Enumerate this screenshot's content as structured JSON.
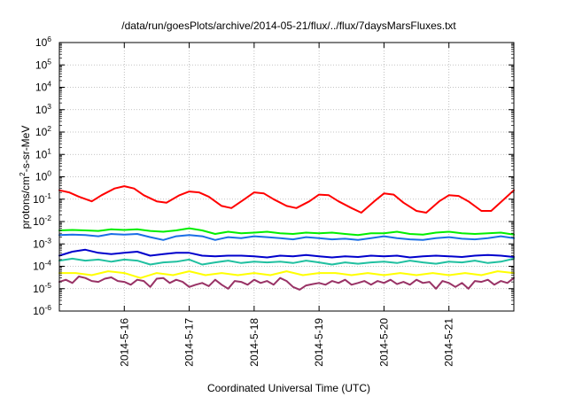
{
  "chart_data": {
    "type": "line",
    "title": "/data/run/goesPlots/archive/2014-05-21/flux/../flux/7daysMarsFluxes.txt",
    "xlabel": "Coordinated Universal Time (UTC)",
    "ylabel": {
      "pre": "protons/cm",
      "sup": "2",
      "post": "-s-sr-MeV"
    },
    "yscale": "log",
    "ylim": [
      1e-06,
      1000000.0
    ],
    "xlim": [
      0,
      7
    ],
    "grid": true,
    "y_ticks": [
      {
        "base": "10",
        "exp": "-6"
      },
      {
        "base": "10",
        "exp": "-5"
      },
      {
        "base": "10",
        "exp": "-4"
      },
      {
        "base": "10",
        "exp": "-3"
      },
      {
        "base": "10",
        "exp": "-2"
      },
      {
        "base": "10",
        "exp": "-1"
      },
      {
        "base": "10",
        "exp": "0"
      },
      {
        "base": "10",
        "exp": "1"
      },
      {
        "base": "10",
        "exp": "2"
      },
      {
        "base": "10",
        "exp": "3"
      },
      {
        "base": "10",
        "exp": "4"
      },
      {
        "base": "10",
        "exp": "5"
      },
      {
        "base": "10",
        "exp": "6"
      }
    ],
    "x_ticks": [
      {
        "x": 1,
        "label": "2014-5-16"
      },
      {
        "x": 2,
        "label": "2014-5-17"
      },
      {
        "x": 3,
        "label": "2014-5-18"
      },
      {
        "x": 4,
        "label": "2014-5-19"
      },
      {
        "x": 5,
        "label": "2014-5-20"
      },
      {
        "x": 6,
        "label": "2014-5-21"
      }
    ],
    "series": [
      {
        "color": "#ff0000",
        "x": [
          0,
          0.15,
          0.3,
          0.5,
          0.65,
          0.85,
          1.0,
          1.15,
          1.3,
          1.5,
          1.65,
          1.85,
          2.0,
          2.15,
          2.3,
          2.5,
          2.65,
          2.85,
          3.0,
          3.15,
          3.3,
          3.5,
          3.65,
          3.85,
          4.0,
          4.15,
          4.3,
          4.5,
          4.65,
          4.85,
          5.0,
          5.15,
          5.3,
          5.5,
          5.65,
          5.85,
          6.0,
          6.15,
          6.3,
          6.5,
          6.65,
          6.85,
          7.0
        ],
        "y": [
          0.25,
          0.2,
          0.13,
          0.08,
          0.15,
          0.3,
          0.38,
          0.3,
          0.15,
          0.08,
          0.07,
          0.15,
          0.22,
          0.2,
          0.13,
          0.05,
          0.04,
          0.1,
          0.2,
          0.18,
          0.1,
          0.05,
          0.04,
          0.08,
          0.16,
          0.15,
          0.08,
          0.04,
          0.025,
          0.08,
          0.18,
          0.16,
          0.07,
          0.03,
          0.025,
          0.08,
          0.15,
          0.14,
          0.08,
          0.03,
          0.03,
          0.1,
          0.25
        ]
      },
      {
        "color": "#00ee00",
        "x": [
          0,
          0.2,
          0.4,
          0.6,
          0.8,
          1.0,
          1.2,
          1.4,
          1.6,
          1.8,
          2.0,
          2.2,
          2.4,
          2.6,
          2.8,
          3.0,
          3.2,
          3.4,
          3.6,
          3.8,
          4.0,
          4.2,
          4.4,
          4.6,
          4.8,
          5.0,
          5.2,
          5.4,
          5.6,
          5.8,
          6.0,
          6.2,
          6.4,
          6.6,
          6.8,
          7.0
        ],
        "y": [
          0.004,
          0.0042,
          0.004,
          0.0038,
          0.0045,
          0.0042,
          0.0045,
          0.0038,
          0.0035,
          0.004,
          0.005,
          0.004,
          0.0028,
          0.0035,
          0.003,
          0.0032,
          0.0035,
          0.003,
          0.0028,
          0.0032,
          0.003,
          0.0032,
          0.0028,
          0.0025,
          0.003,
          0.003,
          0.0035,
          0.0028,
          0.0026,
          0.0032,
          0.0035,
          0.003,
          0.0028,
          0.003,
          0.0032,
          0.0026
        ]
      },
      {
        "color": "#1a6ee6",
        "x": [
          0,
          0.2,
          0.4,
          0.6,
          0.8,
          1.0,
          1.2,
          1.4,
          1.6,
          1.8,
          2.0,
          2.2,
          2.4,
          2.6,
          2.8,
          3.0,
          3.2,
          3.4,
          3.6,
          3.8,
          4.0,
          4.2,
          4.4,
          4.6,
          4.8,
          5.0,
          5.2,
          5.4,
          5.6,
          5.8,
          6.0,
          6.2,
          6.4,
          6.6,
          6.8,
          7.0
        ],
        "y": [
          0.0025,
          0.0026,
          0.0025,
          0.0022,
          0.0028,
          0.0026,
          0.0028,
          0.002,
          0.0015,
          0.0022,
          0.0025,
          0.0022,
          0.0015,
          0.002,
          0.0018,
          0.0022,
          0.002,
          0.0018,
          0.0016,
          0.002,
          0.0018,
          0.0016,
          0.0017,
          0.0015,
          0.0018,
          0.0022,
          0.0018,
          0.0016,
          0.0015,
          0.0018,
          0.002,
          0.0017,
          0.0016,
          0.0018,
          0.0022,
          0.0018
        ]
      },
      {
        "color": "#0000cc",
        "x": [
          0,
          0.2,
          0.4,
          0.6,
          0.8,
          1.0,
          1.2,
          1.4,
          1.6,
          1.8,
          2.0,
          2.2,
          2.4,
          2.6,
          2.8,
          3.0,
          3.2,
          3.4,
          3.6,
          3.8,
          4.0,
          4.2,
          4.4,
          4.6,
          4.8,
          5.0,
          5.2,
          5.4,
          5.6,
          5.8,
          6.0,
          6.2,
          6.4,
          6.6,
          6.8,
          7.0
        ],
        "y": [
          0.0003,
          0.00045,
          0.00055,
          0.0004,
          0.00035,
          0.0004,
          0.00045,
          0.0003,
          0.00035,
          0.0004,
          0.0004,
          0.0003,
          0.00028,
          0.0003,
          0.0003,
          0.00028,
          0.00025,
          0.0003,
          0.00028,
          0.00032,
          0.00028,
          0.00025,
          0.00028,
          0.00026,
          0.0003,
          0.00028,
          0.0003,
          0.00025,
          0.00028,
          0.0003,
          0.00028,
          0.00026,
          0.0003,
          0.00032,
          0.0003,
          0.00026
        ]
      },
      {
        "color": "#20c0a0",
        "x": [
          0,
          0.2,
          0.4,
          0.6,
          0.8,
          1.0,
          1.2,
          1.4,
          1.6,
          1.8,
          2.0,
          2.2,
          2.4,
          2.6,
          2.8,
          3.0,
          3.2,
          3.4,
          3.6,
          3.8,
          4.0,
          4.2,
          4.4,
          4.6,
          4.8,
          5.0,
          5.2,
          5.4,
          5.6,
          5.8,
          6.0,
          6.2,
          6.4,
          6.6,
          6.8,
          7.0
        ],
        "y": [
          0.00018,
          0.00022,
          0.00018,
          0.0002,
          0.00016,
          0.0002,
          0.00018,
          0.00012,
          0.00015,
          0.00016,
          0.0002,
          0.00012,
          0.00015,
          0.00018,
          0.00014,
          0.00016,
          0.00015,
          0.00016,
          0.00014,
          0.00018,
          0.00015,
          0.00012,
          0.00015,
          0.00013,
          0.00015,
          0.00016,
          0.00014,
          0.00018,
          0.00015,
          0.00013,
          0.00016,
          0.00015,
          0.00018,
          0.00014,
          0.00016,
          0.00022
        ]
      },
      {
        "color": "#ffff00",
        "x": [
          0,
          0.25,
          0.5,
          0.75,
          1.0,
          1.25,
          1.5,
          1.75,
          2.0,
          2.25,
          2.5,
          2.75,
          3.0,
          3.25,
          3.5,
          3.75,
          4.0,
          4.25,
          4.5,
          4.75,
          5.0,
          5.25,
          5.5,
          5.75,
          6.0,
          6.25,
          6.5,
          6.75,
          7.0
        ],
        "y": [
          5e-05,
          5e-05,
          4e-05,
          6e-05,
          5e-05,
          3e-05,
          5e-05,
          4e-05,
          6e-05,
          4e-05,
          5e-05,
          4e-05,
          5e-05,
          4e-05,
          6e-05,
          4e-05,
          5e-05,
          5e-05,
          4e-05,
          5e-05,
          4e-05,
          5e-05,
          4e-05,
          5e-05,
          4e-05,
          5e-05,
          4e-05,
          6e-05,
          5e-05
        ]
      },
      {
        "color": "#993366",
        "x": [
          0,
          0.1,
          0.2,
          0.3,
          0.4,
          0.5,
          0.6,
          0.7,
          0.8,
          0.9,
          1.0,
          1.1,
          1.2,
          1.3,
          1.4,
          1.5,
          1.6,
          1.7,
          1.8,
          1.9,
          2.0,
          2.1,
          2.2,
          2.3,
          2.4,
          2.5,
          2.6,
          2.7,
          2.8,
          2.9,
          3.0,
          3.1,
          3.2,
          3.3,
          3.4,
          3.5,
          3.6,
          3.7,
          3.8,
          3.9,
          4.0,
          4.1,
          4.2,
          4.3,
          4.4,
          4.5,
          4.6,
          4.7,
          4.8,
          4.9,
          5.0,
          5.1,
          5.2,
          5.3,
          5.4,
          5.5,
          5.6,
          5.7,
          5.8,
          5.9,
          6.0,
          6.1,
          6.2,
          6.3,
          6.4,
          6.5,
          6.6,
          6.7,
          6.8,
          6.9,
          7.0
        ],
        "y": [
          2e-05,
          2.5e-05,
          1.8e-05,
          3.5e-05,
          3e-05,
          2.2e-05,
          2e-05,
          2.8e-05,
          3.2e-05,
          2.2e-05,
          2e-05,
          1.5e-05,
          2.5e-05,
          2.2e-05,
          1.2e-05,
          2.8e-05,
          3e-05,
          1.8e-05,
          2.5e-05,
          2e-05,
          1.2e-05,
          1.5e-05,
          1.8e-05,
          1.3e-05,
          2.5e-05,
          1.5e-05,
          1e-05,
          2.2e-05,
          2e-05,
          1.5e-05,
          2.5e-05,
          1.8e-05,
          2.2e-05,
          1.5e-05,
          3e-05,
          2.2e-05,
          1.2e-05,
          9e-06,
          1.4e-05,
          1.6e-05,
          1.8e-05,
          1.5e-05,
          2.2e-05,
          1.8e-05,
          2.5e-05,
          1.5e-05,
          1.8e-05,
          2.2e-05,
          1.5e-05,
          2.2e-05,
          1.8e-05,
          2.5e-05,
          1.6e-05,
          2e-05,
          1.5e-05,
          2.5e-05,
          1.8e-05,
          2e-05,
          1e-05,
          2.2e-05,
          1.8e-05,
          1.2e-05,
          1.8e-05,
          1e-05,
          2.2e-05,
          2e-05,
          2.5e-05,
          1.5e-05,
          2.2e-05,
          1.8e-05,
          3e-05
        ]
      }
    ]
  }
}
